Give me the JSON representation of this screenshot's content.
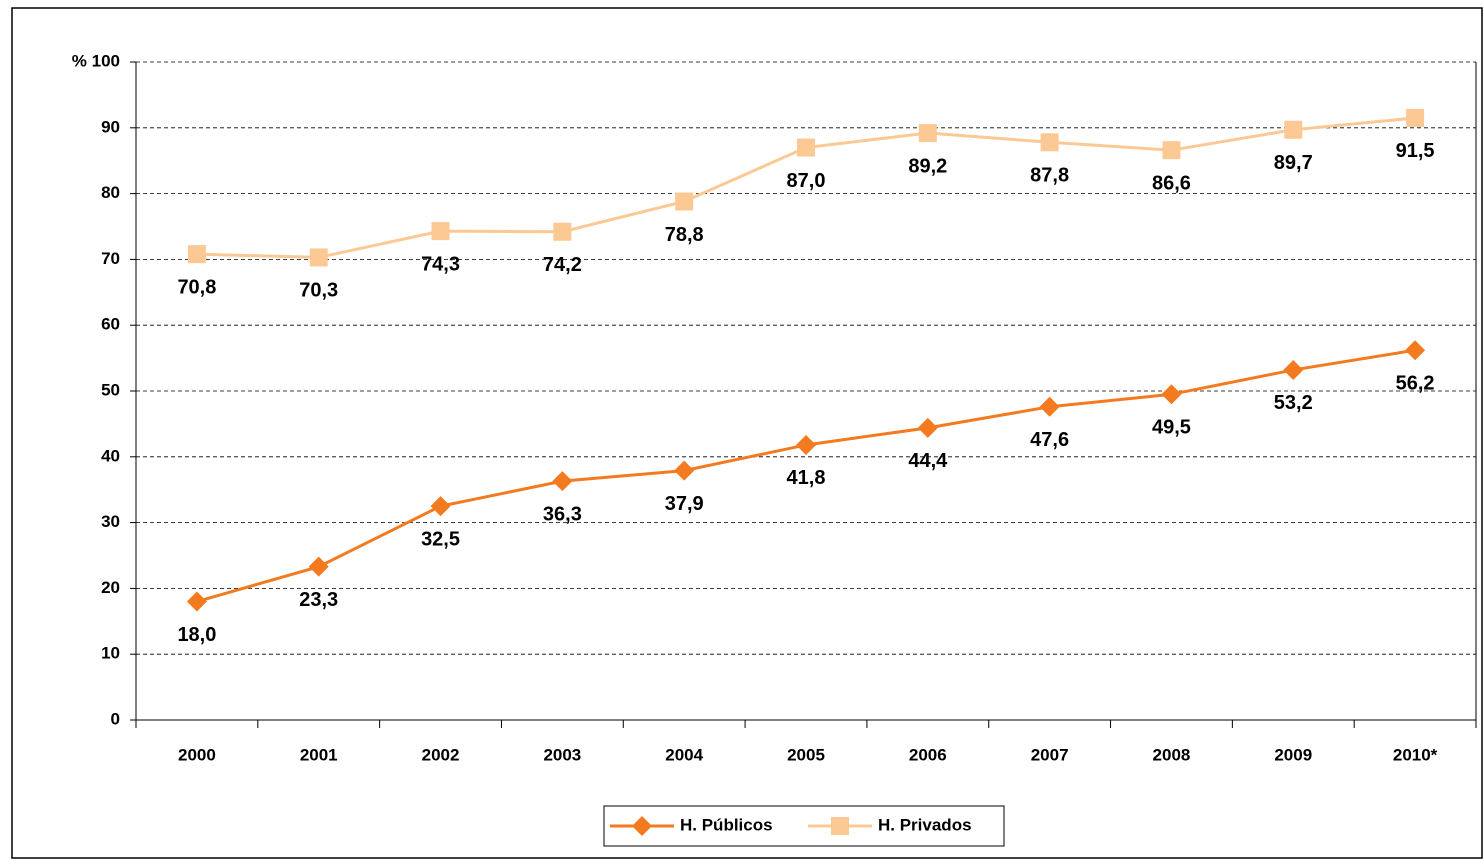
{
  "chart_data": {
    "type": "line",
    "categories": [
      "2000",
      "2001",
      "2002",
      "2003",
      "2004",
      "2005",
      "2006",
      "2007",
      "2008",
      "2009",
      "2010*"
    ],
    "series": [
      {
        "name": "H. Públicos",
        "color": "#f47a1f",
        "marker": "diamond",
        "values": [
          18.0,
          23.3,
          32.5,
          36.3,
          37.9,
          41.8,
          44.4,
          47.6,
          49.5,
          53.2,
          56.2
        ],
        "value_labels": [
          "18,0",
          "23,3",
          "32,5",
          "36,3",
          "37,9",
          "41,8",
          "44,4",
          "47,6",
          "49,5",
          "53,2",
          "56,2"
        ]
      },
      {
        "name": "H. Privados",
        "color": "#fcc994",
        "marker": "square",
        "values": [
          70.8,
          70.3,
          74.3,
          74.2,
          78.8,
          87.0,
          89.2,
          87.8,
          86.6,
          89.7,
          91.5
        ],
        "value_labels": [
          "70,8",
          "70,3",
          "74,3",
          "74,2",
          "78,8",
          "87,0",
          "89,2",
          "87,8",
          "86,6",
          "89,7",
          "91,5"
        ]
      }
    ],
    "ylim": [
      0,
      100
    ],
    "yticks": [
      0,
      10,
      20,
      30,
      40,
      50,
      60,
      70,
      80,
      90,
      {
        "value": 100,
        "label": "% 100"
      }
    ],
    "grid": true,
    "legend": "bottom"
  }
}
